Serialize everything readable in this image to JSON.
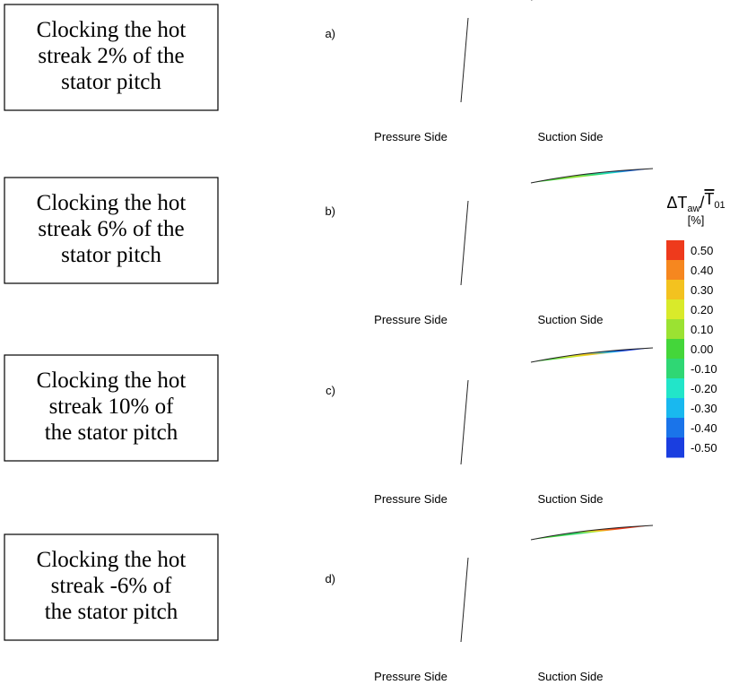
{
  "cases": [
    {
      "lines": [
        "Clocking the hot",
        "streak 2% of the",
        "stator pitch"
      ]
    },
    {
      "lines": [
        "Clocking the hot",
        "streak 6% of the",
        "stator pitch"
      ]
    },
    {
      "lines": [
        "Clocking the hot",
        "streak 10% of",
        "the stator pitch"
      ]
    },
    {
      "lines": [
        "Clocking the hot",
        "streak -6% of",
        "the stator pitch"
      ]
    }
  ],
  "panels": [
    {
      "label": "a)",
      "pressure": "Pressure Side",
      "suction": "Suction Side"
    },
    {
      "label": "b)",
      "pressure": "Pressure Side",
      "suction": "Suction Side"
    },
    {
      "label": "c)",
      "pressure": "Pressure Side",
      "suction": "Suction Side"
    },
    {
      "label": "d)",
      "pressure": "Pressure Side",
      "suction": "Suction Side"
    }
  ],
  "colorbar": {
    "title": [
      "ΔT",
      "aw",
      "/",
      "T",
      "01"
    ],
    "unit": "[%]",
    "levels": [
      {
        "value": 0.5,
        "label": "0.50",
        "color": "#ee3a1c"
      },
      {
        "value": 0.4,
        "label": "0.40",
        "color": "#f6871f"
      },
      {
        "value": 0.3,
        "label": "0.30",
        "color": "#f3c21f"
      },
      {
        "value": 0.2,
        "label": "0.20",
        "color": "#d9ea2a"
      },
      {
        "value": 0.1,
        "label": "0.10",
        "color": "#9be232"
      },
      {
        "value": 0,
        "label": "0.00",
        "color": "#44d63a"
      },
      {
        "value": -0.1,
        "label": "-0.10",
        "color": "#2fd774"
      },
      {
        "value": -0.2,
        "label": "-0.20",
        "color": "#22e5c9"
      },
      {
        "value": -0.3,
        "label": "-0.30",
        "color": "#19b8ef"
      },
      {
        "value": -0.4,
        "label": "-0.40",
        "color": "#1a74ea"
      },
      {
        "value": -0.5,
        "label": "-0.50",
        "color": "#1a3ee0"
      }
    ]
  }
}
